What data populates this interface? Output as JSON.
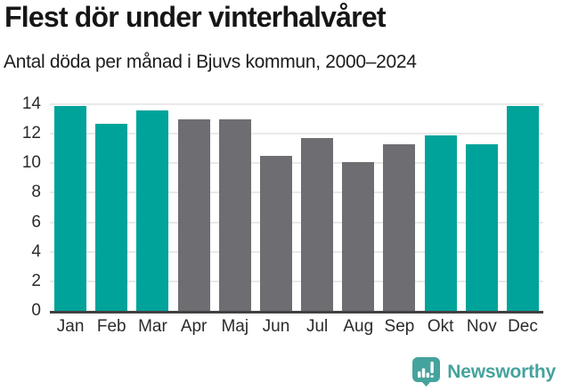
{
  "header": {
    "title": "Flest dör under vinterhalvåret",
    "subtitle": "Antal döda per månad i Bjuvs kommun, 2000–2024"
  },
  "chart_data": {
    "type": "bar",
    "title": "Flest dör under vinterhalvåret",
    "subtitle": "Antal döda per månad i Bjuvs kommun, 2000–2024",
    "categories": [
      "Jan",
      "Feb",
      "Mar",
      "Apr",
      "Maj",
      "Jun",
      "Jul",
      "Aug",
      "Sep",
      "Okt",
      "Nov",
      "Dec"
    ],
    "values": [
      13.9,
      12.7,
      13.6,
      13.0,
      13.0,
      10.5,
      11.7,
      10.1,
      11.3,
      11.9,
      11.3,
      13.9
    ],
    "bar_colors": [
      "highlight",
      "highlight",
      "highlight",
      "muted",
      "muted",
      "muted",
      "muted",
      "muted",
      "muted",
      "highlight",
      "highlight",
      "highlight"
    ],
    "palette": {
      "highlight": "#00a39a",
      "muted": "#6e6e72"
    },
    "xlabel": "",
    "ylabel": "",
    "ylim": [
      0,
      14
    ],
    "yticks": [
      0,
      2,
      4,
      6,
      8,
      10,
      12,
      14
    ],
    "grid": true,
    "legend": false
  },
  "colors": {
    "background": "#ffffff",
    "gridline": "#e9e9e9",
    "axis_line": "#414144",
    "title_text": "#161616",
    "tick_text": "#2b2b2b"
  },
  "footer": {
    "brand_label": "Newsworthy",
    "brand_color": "#45a39d",
    "logo_icon": "newsworthy-speech-bubble-chart-icon"
  }
}
